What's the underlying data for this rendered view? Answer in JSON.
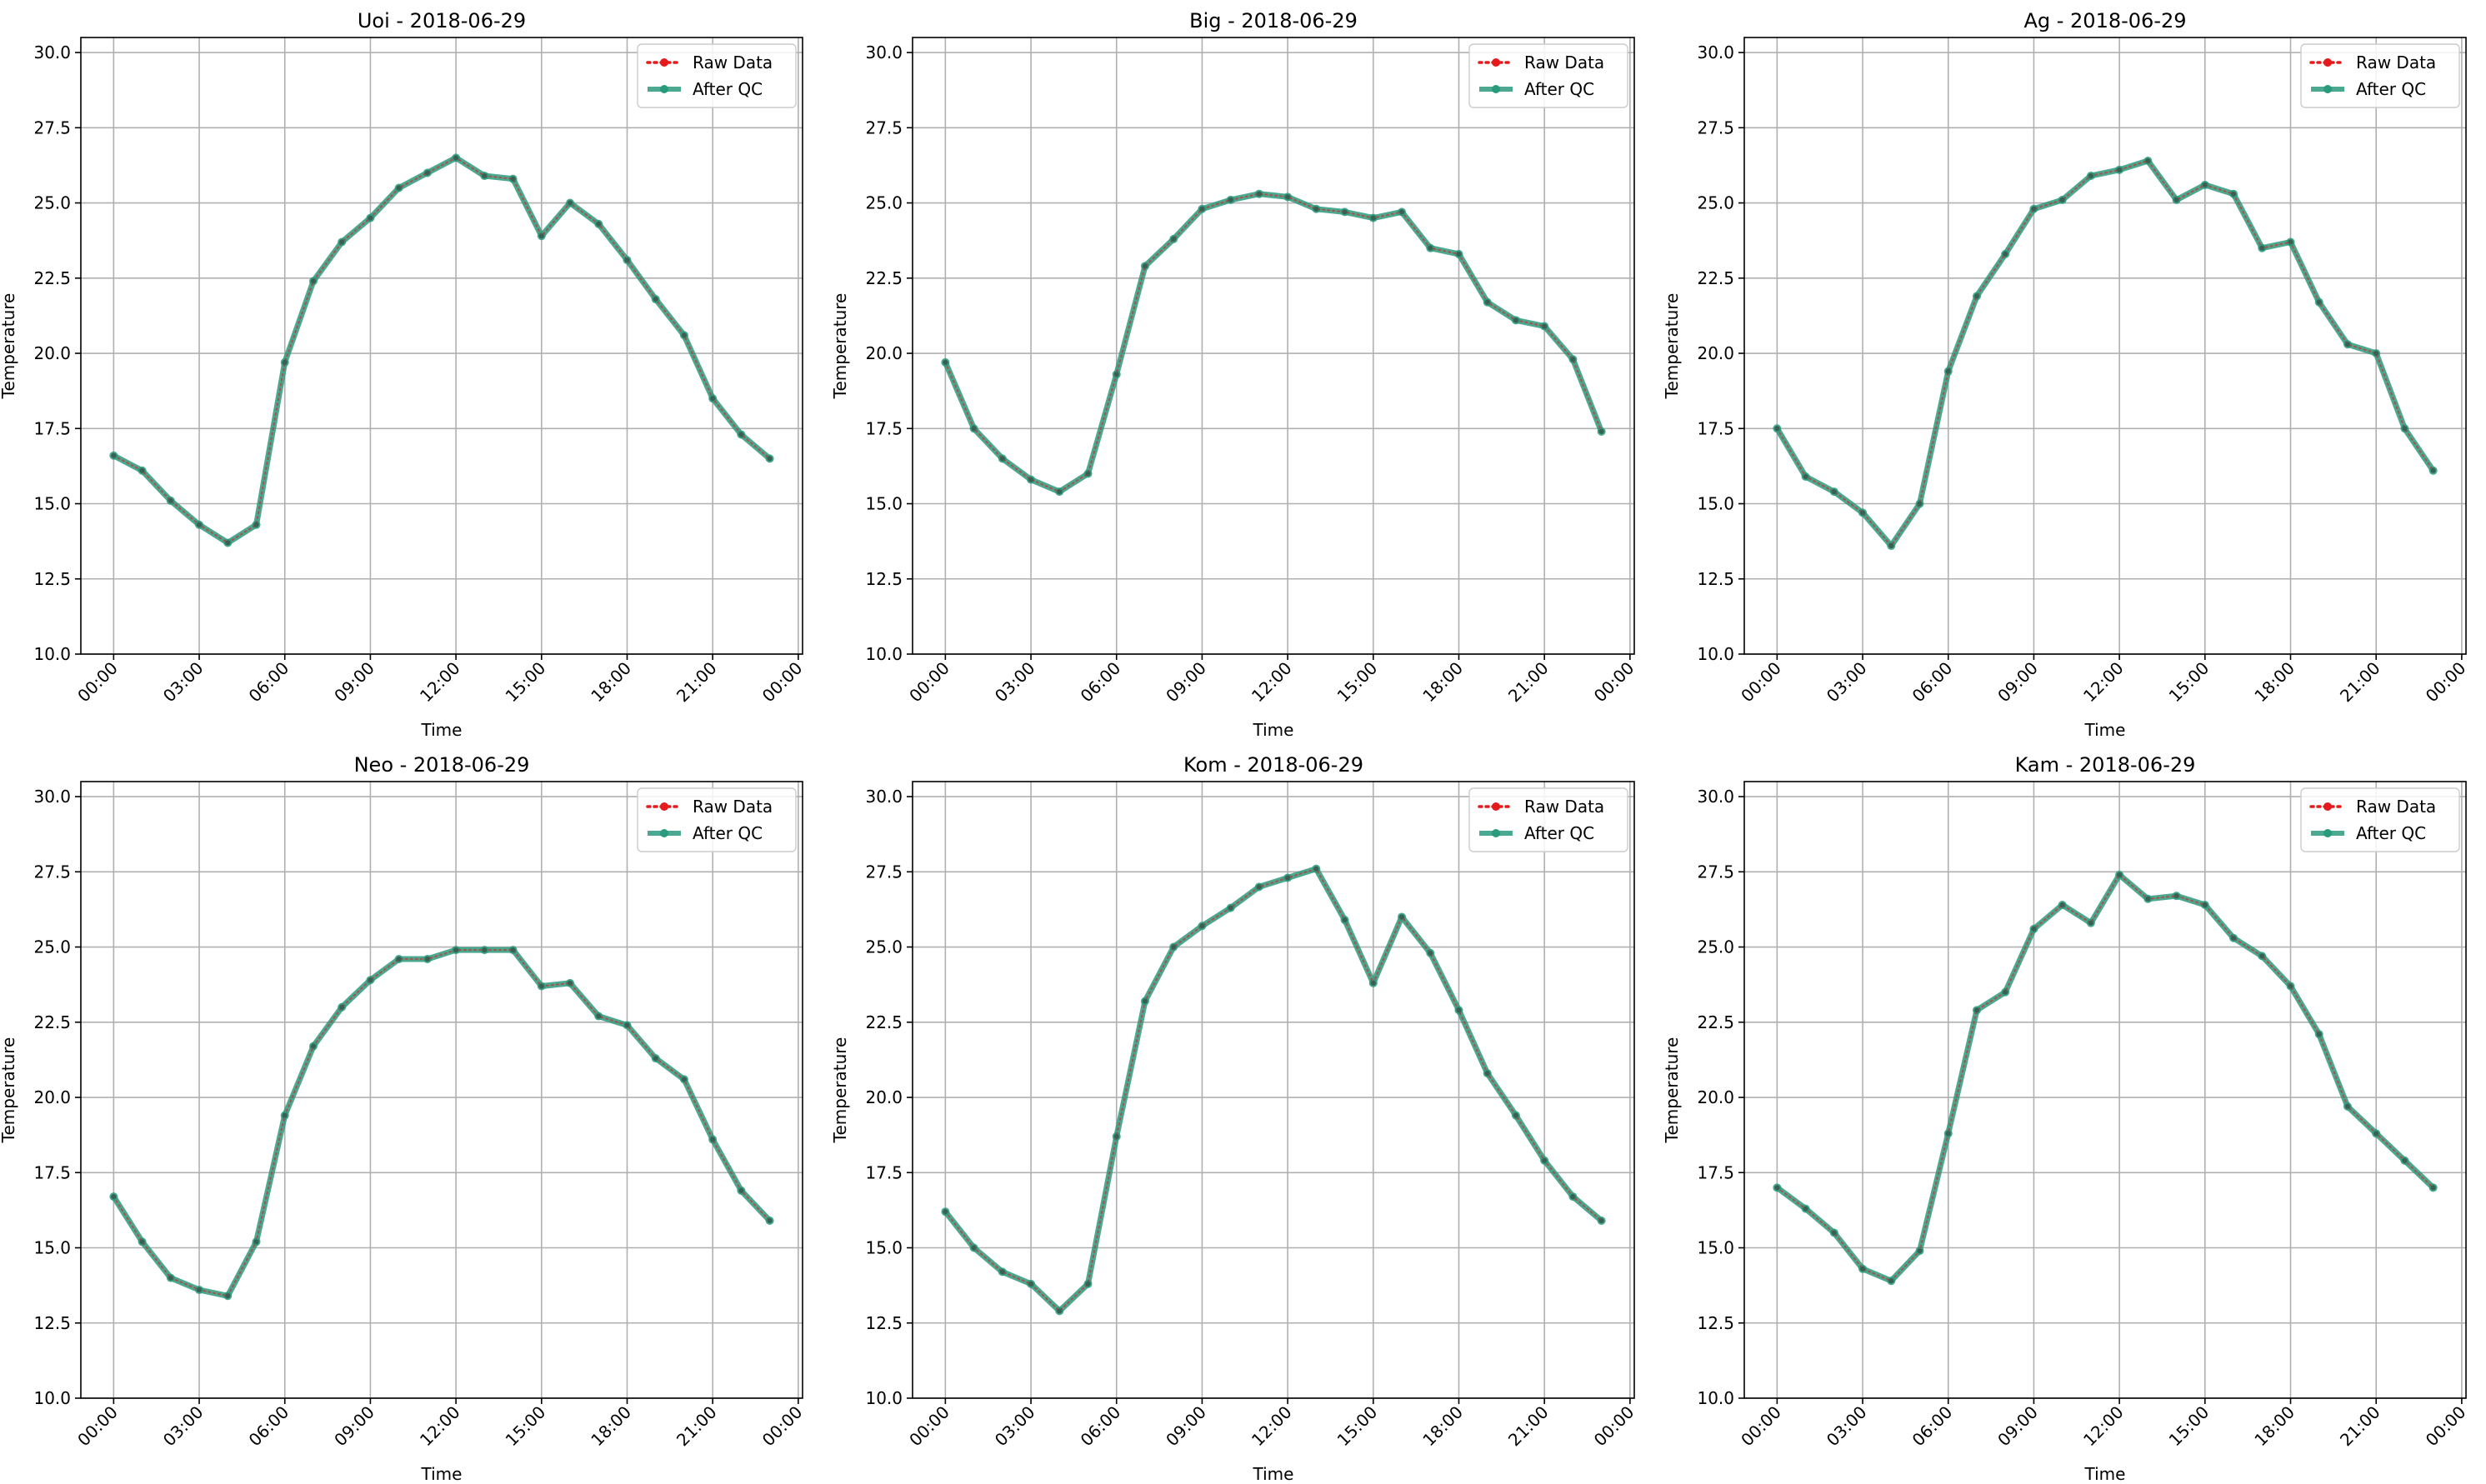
{
  "chart_data": [
    {
      "type": "line",
      "title": "Uoi - 2018-06-29",
      "xlabel": "Time",
      "ylabel": "Temperature",
      "ylim": [
        10,
        30.5
      ],
      "yticks": [
        10.0,
        12.5,
        15.0,
        17.5,
        20.0,
        22.5,
        25.0,
        27.5,
        30.0
      ],
      "xticks": [
        "00:00",
        "03:00",
        "06:00",
        "09:00",
        "12:00",
        "15:00",
        "18:00",
        "21:00",
        "00:00"
      ],
      "grid": true,
      "legend_position": "top-right",
      "x": [
        "00:00",
        "01:00",
        "02:00",
        "03:00",
        "04:00",
        "05:00",
        "06:00",
        "07:00",
        "08:00",
        "09:00",
        "10:00",
        "11:00",
        "12:00",
        "13:00",
        "14:00",
        "15:00",
        "16:00",
        "17:00",
        "18:00",
        "19:00",
        "20:00",
        "21:00",
        "22:00",
        "23:00"
      ],
      "series": [
        {
          "name": "Raw Data",
          "color": "#e41a1c",
          "values": [
            16.6,
            16.1,
            15.1,
            14.3,
            13.7,
            14.3,
            19.7,
            22.4,
            23.7,
            24.5,
            25.5,
            26.0,
            26.5,
            25.9,
            25.8,
            23.9,
            25.0,
            24.3,
            23.1,
            21.8,
            20.6,
            18.5,
            17.3,
            16.5
          ]
        },
        {
          "name": "After QC",
          "color": "#2a9a7c",
          "values": [
            16.6,
            16.1,
            15.1,
            14.3,
            13.7,
            14.3,
            19.7,
            22.4,
            23.7,
            24.5,
            25.5,
            26.0,
            26.5,
            25.9,
            25.8,
            23.9,
            25.0,
            24.3,
            23.1,
            21.8,
            20.6,
            18.5,
            17.3,
            16.5
          ]
        }
      ]
    },
    {
      "type": "line",
      "title": "Big - 2018-06-29",
      "xlabel": "Time",
      "ylabel": "Temperature",
      "ylim": [
        10,
        30.5
      ],
      "yticks": [
        10.0,
        12.5,
        15.0,
        17.5,
        20.0,
        22.5,
        25.0,
        27.5,
        30.0
      ],
      "xticks": [
        "00:00",
        "03:00",
        "06:00",
        "09:00",
        "12:00",
        "15:00",
        "18:00",
        "21:00",
        "00:00"
      ],
      "grid": true,
      "legend_position": "top-right",
      "x": [
        "00:00",
        "01:00",
        "02:00",
        "03:00",
        "04:00",
        "05:00",
        "06:00",
        "07:00",
        "08:00",
        "09:00",
        "10:00",
        "11:00",
        "12:00",
        "13:00",
        "14:00",
        "15:00",
        "16:00",
        "17:00",
        "18:00",
        "19:00",
        "20:00",
        "21:00",
        "22:00",
        "23:00"
      ],
      "series": [
        {
          "name": "Raw Data",
          "color": "#e41a1c",
          "values": [
            19.7,
            17.5,
            16.5,
            15.8,
            15.4,
            16.0,
            19.3,
            22.9,
            23.8,
            24.8,
            25.1,
            25.3,
            25.2,
            24.8,
            24.7,
            24.5,
            24.7,
            23.5,
            23.3,
            21.7,
            21.1,
            20.9,
            19.8,
            17.4
          ]
        },
        {
          "name": "After QC",
          "color": "#2a9a7c",
          "values": [
            19.7,
            17.5,
            16.5,
            15.8,
            15.4,
            16.0,
            19.3,
            22.9,
            23.8,
            24.8,
            25.1,
            25.3,
            25.2,
            24.8,
            24.7,
            24.5,
            24.7,
            23.5,
            23.3,
            21.7,
            21.1,
            20.9,
            19.8,
            17.4
          ]
        }
      ]
    },
    {
      "type": "line",
      "title": "Ag - 2018-06-29",
      "xlabel": "Time",
      "ylabel": "Temperature",
      "ylim": [
        10,
        30.5
      ],
      "yticks": [
        10.0,
        12.5,
        15.0,
        17.5,
        20.0,
        22.5,
        25.0,
        27.5,
        30.0
      ],
      "xticks": [
        "00:00",
        "03:00",
        "06:00",
        "09:00",
        "12:00",
        "15:00",
        "18:00",
        "21:00",
        "00:00"
      ],
      "grid": true,
      "legend_position": "top-right",
      "x": [
        "00:00",
        "01:00",
        "02:00",
        "03:00",
        "04:00",
        "05:00",
        "06:00",
        "07:00",
        "08:00",
        "09:00",
        "10:00",
        "11:00",
        "12:00",
        "13:00",
        "14:00",
        "15:00",
        "16:00",
        "17:00",
        "18:00",
        "19:00",
        "20:00",
        "21:00",
        "22:00",
        "23:00"
      ],
      "series": [
        {
          "name": "Raw Data",
          "color": "#e41a1c",
          "values": [
            17.5,
            15.9,
            15.4,
            14.7,
            13.6,
            15.0,
            19.4,
            21.9,
            23.3,
            24.8,
            25.1,
            25.9,
            26.1,
            26.4,
            25.1,
            25.6,
            25.3,
            23.5,
            23.7,
            21.7,
            20.3,
            20.0,
            17.5,
            16.1
          ]
        },
        {
          "name": "After QC",
          "color": "#2a9a7c",
          "values": [
            17.5,
            15.9,
            15.4,
            14.7,
            13.6,
            15.0,
            19.4,
            21.9,
            23.3,
            24.8,
            25.1,
            25.9,
            26.1,
            26.4,
            25.1,
            25.6,
            25.3,
            23.5,
            23.7,
            21.7,
            20.3,
            20.0,
            17.5,
            16.1
          ]
        }
      ]
    },
    {
      "type": "line",
      "title": "Neo - 2018-06-29",
      "xlabel": "Time",
      "ylabel": "Temperature",
      "ylim": [
        10,
        30.5
      ],
      "yticks": [
        10.0,
        12.5,
        15.0,
        17.5,
        20.0,
        22.5,
        25.0,
        27.5,
        30.0
      ],
      "xticks": [
        "00:00",
        "03:00",
        "06:00",
        "09:00",
        "12:00",
        "15:00",
        "18:00",
        "21:00",
        "00:00"
      ],
      "grid": true,
      "legend_position": "top-right",
      "x": [
        "00:00",
        "01:00",
        "02:00",
        "03:00",
        "04:00",
        "05:00",
        "06:00",
        "07:00",
        "08:00",
        "09:00",
        "10:00",
        "11:00",
        "12:00",
        "13:00",
        "14:00",
        "15:00",
        "16:00",
        "17:00",
        "18:00",
        "19:00",
        "20:00",
        "21:00",
        "22:00",
        "23:00"
      ],
      "series": [
        {
          "name": "Raw Data",
          "color": "#e41a1c",
          "values": [
            16.7,
            15.2,
            14.0,
            13.6,
            13.4,
            15.2,
            19.4,
            21.7,
            23.0,
            23.9,
            24.6,
            24.6,
            24.9,
            24.9,
            24.9,
            23.7,
            23.8,
            22.7,
            22.4,
            21.3,
            20.6,
            18.6,
            16.9,
            15.9
          ]
        },
        {
          "name": "After QC",
          "color": "#2a9a7c",
          "values": [
            16.7,
            15.2,
            14.0,
            13.6,
            13.4,
            15.2,
            19.4,
            21.7,
            23.0,
            23.9,
            24.6,
            24.6,
            24.9,
            24.9,
            24.9,
            23.7,
            23.8,
            22.7,
            22.4,
            21.3,
            20.6,
            18.6,
            16.9,
            15.9
          ]
        }
      ]
    },
    {
      "type": "line",
      "title": "Kom - 2018-06-29",
      "xlabel": "Time",
      "ylabel": "Temperature",
      "ylim": [
        10,
        30.5
      ],
      "yticks": [
        10.0,
        12.5,
        15.0,
        17.5,
        20.0,
        22.5,
        25.0,
        27.5,
        30.0
      ],
      "xticks": [
        "00:00",
        "03:00",
        "06:00",
        "09:00",
        "12:00",
        "15:00",
        "18:00",
        "21:00",
        "00:00"
      ],
      "grid": true,
      "legend_position": "top-right",
      "x": [
        "00:00",
        "01:00",
        "02:00",
        "03:00",
        "04:00",
        "05:00",
        "06:00",
        "07:00",
        "08:00",
        "09:00",
        "10:00",
        "11:00",
        "12:00",
        "13:00",
        "14:00",
        "15:00",
        "16:00",
        "17:00",
        "18:00",
        "19:00",
        "20:00",
        "21:00",
        "22:00",
        "23:00"
      ],
      "series": [
        {
          "name": "Raw Data",
          "color": "#e41a1c",
          "values": [
            16.2,
            15.0,
            14.2,
            13.8,
            12.9,
            13.8,
            18.7,
            23.2,
            25.0,
            25.7,
            26.3,
            27.0,
            27.3,
            27.6,
            25.9,
            23.8,
            26.0,
            24.8,
            22.9,
            20.8,
            19.4,
            17.9,
            16.7,
            15.9
          ]
        },
        {
          "name": "After QC",
          "color": "#2a9a7c",
          "values": [
            16.2,
            15.0,
            14.2,
            13.8,
            12.9,
            13.8,
            18.7,
            23.2,
            25.0,
            25.7,
            26.3,
            27.0,
            27.3,
            27.6,
            25.9,
            23.8,
            26.0,
            24.8,
            22.9,
            20.8,
            19.4,
            17.9,
            16.7,
            15.9
          ]
        }
      ]
    },
    {
      "type": "line",
      "title": "Kam - 2018-06-29",
      "xlabel": "Time",
      "ylabel": "Temperature",
      "ylim": [
        10,
        30.5
      ],
      "yticks": [
        10.0,
        12.5,
        15.0,
        17.5,
        20.0,
        22.5,
        25.0,
        27.5,
        30.0
      ],
      "xticks": [
        "00:00",
        "03:00",
        "06:00",
        "09:00",
        "12:00",
        "15:00",
        "18:00",
        "21:00",
        "00:00"
      ],
      "grid": true,
      "legend_position": "top-right",
      "x": [
        "00:00",
        "01:00",
        "02:00",
        "03:00",
        "04:00",
        "05:00",
        "06:00",
        "07:00",
        "08:00",
        "09:00",
        "10:00",
        "11:00",
        "12:00",
        "13:00",
        "14:00",
        "15:00",
        "16:00",
        "17:00",
        "18:00",
        "19:00",
        "20:00",
        "21:00",
        "22:00",
        "23:00"
      ],
      "series": [
        {
          "name": "Raw Data",
          "color": "#e41a1c",
          "values": [
            17.0,
            16.3,
            15.5,
            14.3,
            13.9,
            14.9,
            18.8,
            22.9,
            23.5,
            25.6,
            26.4,
            25.8,
            27.4,
            26.6,
            26.7,
            26.4,
            25.3,
            24.7,
            23.7,
            22.1,
            19.7,
            18.8,
            17.9,
            17.0
          ]
        },
        {
          "name": "After QC",
          "color": "#2a9a7c",
          "values": [
            17.0,
            16.3,
            15.5,
            14.3,
            13.9,
            14.9,
            18.8,
            22.9,
            23.5,
            25.6,
            26.4,
            25.8,
            27.4,
            26.6,
            26.7,
            26.4,
            25.3,
            24.7,
            23.7,
            22.1,
            19.7,
            18.8,
            17.9,
            17.0
          ]
        }
      ]
    }
  ]
}
